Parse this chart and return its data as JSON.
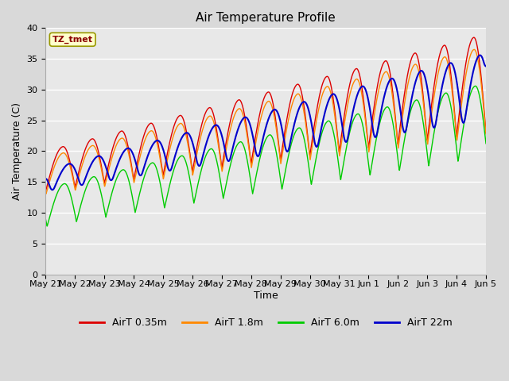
{
  "title": "Air Temperature Profile",
  "xlabel": "Time",
  "ylabel": "Air Temperature (C)",
  "ylim": [
    0,
    40
  ],
  "background_color": "#d9d9d9",
  "plot_bg_color": "#e8e8e8",
  "annotation_text": "TZ_tmet",
  "annotation_color": "#8b0000",
  "annotation_bg": "#ffffcc",
  "annotation_border": "#999900",
  "colors": {
    "AirT 0.35m": "#dd0000",
    "AirT 1.8m": "#ff8800",
    "AirT 6.0m": "#00cc00",
    "AirT 22m": "#0000cc"
  },
  "x_ticks": [
    "May 21",
    "May 22",
    "May 23",
    "May 24",
    "May 25",
    "May 26",
    "May 27",
    "May 28",
    "May 29",
    "May 30",
    "May 31",
    "Jun 1",
    "Jun 2",
    "Jun 3",
    "Jun 4",
    "Jun 5"
  ],
  "n_days": 15,
  "yticks": [
    0,
    5,
    10,
    15,
    20,
    25,
    30,
    35,
    40
  ]
}
